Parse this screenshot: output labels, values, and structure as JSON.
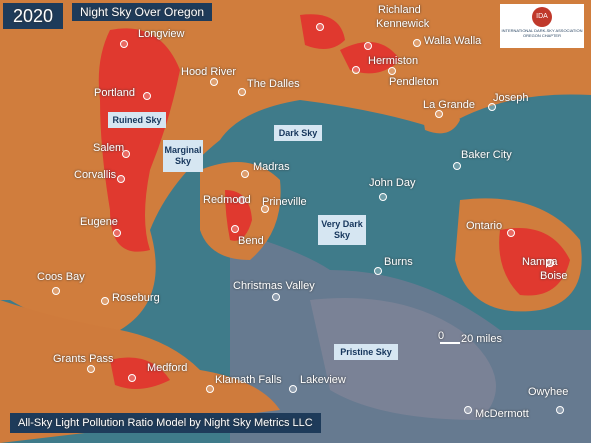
{
  "year": "2020",
  "title": "Night Sky Over Oregon",
  "logo": {
    "mark": "IDA",
    "name": "INTERNATIONAL DARK-SKY ASSOCIATION",
    "chapter": "OREGON CHAPTER"
  },
  "zones": [
    "Ruined Sky",
    "Marginal Sky",
    "Dark Sky",
    "Very Dark Sky",
    "Pristine Sky"
  ],
  "cities": [
    "Longview",
    "Portland",
    "Hood River",
    "The Dalles",
    "Richland",
    "Kennewick",
    "Walla Walla",
    "Hermiston",
    "Pendleton",
    "La Grande",
    "Joseph",
    "Baker City",
    "Madras",
    "John Day",
    "Redmond",
    "Prineville",
    "Bend",
    "Salem",
    "Corvallis",
    "Eugene",
    "Ontario",
    "Nampa",
    "Boise",
    "Burns",
    "Coos Bay",
    "Roseburg",
    "Christmas Valley",
    "Grants Pass",
    "Medford",
    "Klamath Falls",
    "Lakeview",
    "McDermott",
    "Owyhee"
  ],
  "scale": {
    "start": "0",
    "end": "20 miles"
  },
  "footer": "All-Sky Light Pollution Ratio Model by Night Sky Metrics LLC"
}
